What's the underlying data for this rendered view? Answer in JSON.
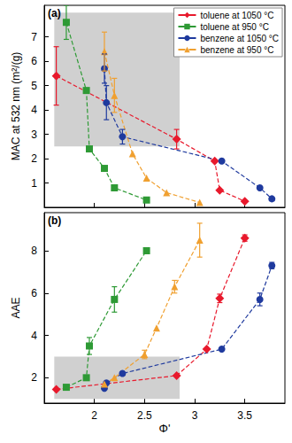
{
  "chart_data": [
    {
      "type": "line",
      "annotations": [
        "(a)"
      ],
      "y_label": "MAC at 532 nm (m²/(g)",
      "xlim": [
        1.5,
        3.9
      ],
      "xticks": [
        2,
        2.5,
        3,
        3.5
      ],
      "ylim": [
        0,
        8.3
      ],
      "yticks": [
        1,
        2,
        3,
        4,
        5,
        6,
        7
      ],
      "tick_labels": "y",
      "legend": "upper right",
      "shaded_region": {
        "x": [
          1.6,
          2.85
        ],
        "y": [
          2.5,
          8
        ]
      },
      "series": [
        {
          "name": "toluene at 1050 °C",
          "color": "#e8192c",
          "marker": "diamond",
          "line_style": "dashed",
          "x": [
            1.62,
            2.82,
            3.2,
            3.25,
            3.5
          ],
          "values": [
            5.4,
            2.8,
            1.9,
            0.7,
            0.25
          ],
          "errors": [
            1.2,
            0.4,
            null,
            null,
            null
          ]
        },
        {
          "name": "toluene at 950 °C",
          "color": "#2e9a35",
          "marker": "square",
          "line_style": "dashed",
          "x": [
            1.72,
            1.92,
            1.95,
            2.1,
            2.2,
            2.52
          ],
          "values": [
            7.6,
            4.8,
            2.4,
            1.6,
            0.8,
            0.3
          ],
          "errors": [
            0.7,
            null,
            null,
            null,
            null,
            null
          ]
        },
        {
          "name": "benzene at 1050 °C",
          "color": "#1f3a9e",
          "marker": "circle",
          "line_style": "dashed",
          "x": [
            2.1,
            2.12,
            2.28,
            3.27,
            3.65,
            3.77
          ],
          "values": [
            5.7,
            4.3,
            2.9,
            1.9,
            0.8,
            0.35
          ],
          "errors": [
            0.6,
            0.7,
            0.3,
            null,
            null,
            null
          ]
        },
        {
          "name": "benzene at 950 °C",
          "color": "#f0a030",
          "marker": "triangle",
          "line_style": "dashed",
          "x": [
            2.1,
            2.2,
            2.38,
            2.52,
            2.72,
            3.05
          ],
          "values": [
            6.4,
            4.6,
            2.2,
            1.2,
            0.6,
            0.2
          ],
          "errors": [
            0.8,
            0.7,
            null,
            null,
            null,
            null
          ]
        }
      ]
    },
    {
      "type": "line",
      "annotations": [
        "(b)"
      ],
      "x_label": "Φ'",
      "y_label": "AAE",
      "xlim": [
        1.5,
        3.9
      ],
      "xticks": [
        2,
        2.5,
        3,
        3.5
      ],
      "ylim": [
        0.8,
        9.8
      ],
      "yticks": [
        2,
        4,
        6,
        8
      ],
      "shaded_region": {
        "x": [
          1.6,
          2.85
        ],
        "y": [
          1,
          3
        ]
      },
      "series": [
        {
          "name": "toluene at 1050 °C",
          "color": "#e8192c",
          "marker": "diamond",
          "line_style": "dashed",
          "x": [
            1.62,
            2.82,
            3.12,
            3.25,
            3.5
          ],
          "values": [
            1.45,
            2.1,
            3.35,
            5.75,
            8.6
          ],
          "errors": [
            null,
            null,
            null,
            0.2,
            0.15
          ]
        },
        {
          "name": "toluene at 950 °C",
          "color": "#2e9a35",
          "marker": "square",
          "line_style": "dashed",
          "x": [
            1.72,
            1.92,
            1.95,
            2.2,
            2.52
          ],
          "values": [
            1.55,
            2.0,
            3.5,
            5.7,
            8.0
          ],
          "errors": [
            null,
            null,
            0.4,
            0.6,
            null
          ]
        },
        {
          "name": "benzene at 1050 °C",
          "color": "#1f3a9e",
          "marker": "circle",
          "line_style": "dashed",
          "x": [
            2.1,
            2.12,
            2.28,
            3.27,
            3.65,
            3.77
          ],
          "values": [
            1.5,
            1.75,
            2.2,
            3.35,
            5.7,
            7.3
          ],
          "errors": [
            null,
            null,
            null,
            null,
            0.3,
            0.15
          ]
        },
        {
          "name": "benzene at 950 °C",
          "color": "#f0a030",
          "marker": "triangle",
          "line_style": "dashed",
          "x": [
            2.1,
            2.2,
            2.5,
            2.62,
            2.8,
            3.05
          ],
          "values": [
            1.7,
            2.0,
            3.1,
            4.35,
            6.3,
            8.5
          ],
          "errors": [
            null,
            null,
            0.2,
            null,
            0.3,
            0.8
          ]
        }
      ]
    }
  ]
}
